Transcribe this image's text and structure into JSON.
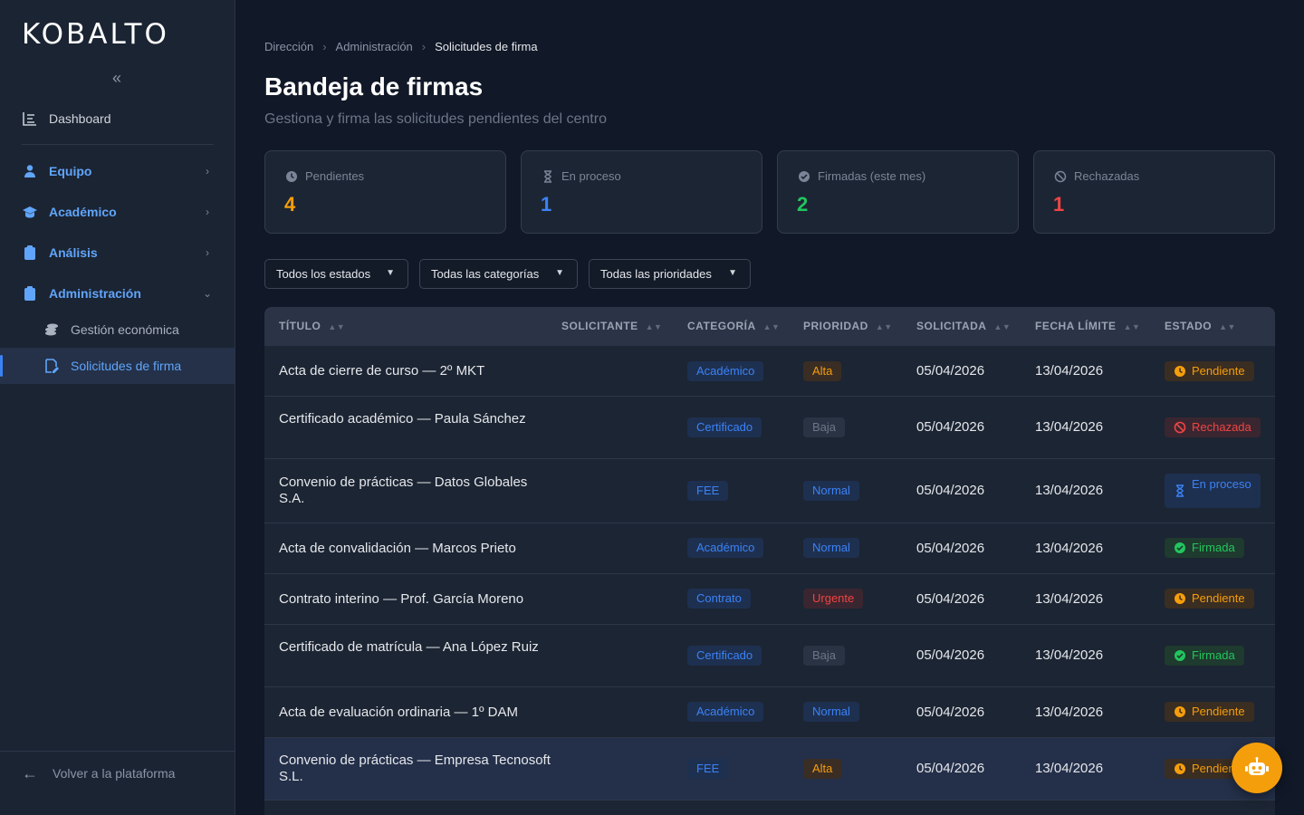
{
  "brand": {
    "logo": "KOBALTO"
  },
  "sidebar": {
    "dashboard": "Dashboard",
    "groups": [
      {
        "label": "Equipo",
        "icon": "user-icon"
      },
      {
        "label": "Académico",
        "icon": "graduation-cap-icon"
      },
      {
        "label": "Análisis",
        "icon": "clipboard-icon"
      },
      {
        "label": "Administración",
        "icon": "clipboard-icon"
      }
    ],
    "subitems": [
      {
        "label": "Gestión económica",
        "icon": "coins-icon"
      },
      {
        "label": "Solicitudes de firma",
        "icon": "signature-icon",
        "active": true
      }
    ],
    "footer": "Volver a la plataforma"
  },
  "breadcrumb": [
    "Dirección",
    "Administración",
    "Solicitudes de firma"
  ],
  "page": {
    "title": "Bandeja de firmas",
    "subtitle": "Gestiona y firma las solicitudes pendientes del centro"
  },
  "stats": [
    {
      "label": "Pendientes",
      "value": "4",
      "color": "#f59e0b",
      "icon": "clock-icon"
    },
    {
      "label": "En proceso",
      "value": "1",
      "color": "#3b82f6",
      "icon": "hourglass-icon"
    },
    {
      "label": "Firmadas (este mes)",
      "value": "2",
      "color": "#22c55e",
      "icon": "check-circle-icon"
    },
    {
      "label": "Rechazadas",
      "value": "1",
      "color": "#ef4444",
      "icon": "ban-icon"
    }
  ],
  "filters": [
    "Todos los estados",
    "Todas las categorías",
    "Todas las prioridades"
  ],
  "table": {
    "headers": [
      "TÍTULO",
      "SOLICITANTE",
      "CATEGORÍA",
      "PRIORIDAD",
      "SOLICITADA",
      "FECHA LÍMITE",
      "ESTADO"
    ],
    "rows": [
      {
        "title": "Acta de cierre de curso — 2º MKT",
        "category": "Académico",
        "priority": "Alta",
        "requested": "05/04/2026",
        "deadline": "13/04/2026",
        "status": "Pendiente"
      },
      {
        "title": "Certificado académico — Paula Sánchez",
        "category": "Certificado",
        "priority": "Baja",
        "requested": "05/04/2026",
        "deadline": "13/04/2026",
        "status": "Rechazada"
      },
      {
        "title": "Convenio de prácticas — Datos Globales S.A.",
        "category": "FEE",
        "priority": "Normal",
        "requested": "05/04/2026",
        "deadline": "13/04/2026",
        "status": "En proceso"
      },
      {
        "title": "Acta de convalidación — Marcos Prieto",
        "category": "Académico",
        "priority": "Normal",
        "requested": "05/04/2026",
        "deadline": "13/04/2026",
        "status": "Firmada"
      },
      {
        "title": "Contrato interino — Prof. García Moreno",
        "category": "Contrato",
        "priority": "Urgente",
        "requested": "05/04/2026",
        "deadline": "13/04/2026",
        "status": "Pendiente"
      },
      {
        "title": "Certificado de matrícula — Ana López Ruiz",
        "category": "Certificado",
        "priority": "Baja",
        "requested": "05/04/2026",
        "deadline": "13/04/2026",
        "status": "Firmada"
      },
      {
        "title": "Acta de evaluación ordinaria — 1º DAM",
        "category": "Académico",
        "priority": "Normal",
        "requested": "05/04/2026",
        "deadline": "13/04/2026",
        "status": "Pendiente"
      },
      {
        "title": "Convenio de prácticas — Empresa Tecnosoft S.L.",
        "category": "FEE",
        "priority": "Alta",
        "requested": "05/04/2026",
        "deadline": "13/04/2026",
        "status": "Pendiente"
      }
    ]
  }
}
